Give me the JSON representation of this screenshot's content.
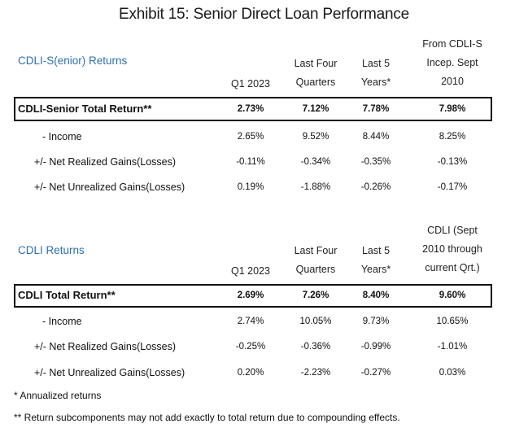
{
  "title": "Exhibit 15: Senior Direct Loan Performance",
  "senior": {
    "label": "CDLI-S(enior) Returns",
    "col1": [
      "Q1 2023"
    ],
    "col2": [
      "Last Four",
      "Quarters"
    ],
    "col3": [
      "Last 5",
      "Years*"
    ],
    "col4": [
      "From CDLI-S",
      "Incep. Sept",
      "2010"
    ],
    "total": {
      "label": "CDLI-Senior Total Return**",
      "values": [
        "2.73%",
        "7.12%",
        "7.78%",
        "7.98%"
      ]
    },
    "rows": [
      {
        "label": "- Income",
        "values": [
          "2.65%",
          "9.52%",
          "8.44%",
          "8.25%"
        ]
      },
      {
        "label": "+/- Net Realized Gains(Losses)",
        "values": [
          "-0.11%",
          "-0.34%",
          "-0.35%",
          "-0.13%"
        ]
      },
      {
        "label": "+/- Net Unrealized Gains(Losses)",
        "values": [
          "0.19%",
          "-1.88%",
          "-0.26%",
          "-0.17%"
        ]
      }
    ]
  },
  "cdli": {
    "label": "CDLI Returns",
    "col1": [
      "Q1 2023"
    ],
    "col2": [
      "Last Four",
      "Quarters"
    ],
    "col3": [
      "Last 5",
      "Years*"
    ],
    "col4": [
      "CDLI (Sept",
      "2010 through",
      "current Qrt.)"
    ],
    "total": {
      "label": "CDLI Total Return**",
      "values": [
        "2.69%",
        "7.26%",
        "8.40%",
        "9.60%"
      ]
    },
    "rows": [
      {
        "label": "- Income",
        "values": [
          "2.74%",
          "10.05%",
          "9.73%",
          "10.65%"
        ]
      },
      {
        "label": "+/- Net Realized Gains(Losses)",
        "values": [
          "-0.25%",
          "-0.36%",
          "-0.99%",
          "-1.01%"
        ]
      },
      {
        "label": "+/- Net Unrealized Gains(Losses)",
        "values": [
          "0.20%",
          "-2.23%",
          "-0.27%",
          "0.03%"
        ]
      }
    ]
  },
  "notes": [
    "* Annualized returns",
    "** Return subcomponents may not add exactly to total return due to compounding effects."
  ],
  "colors": {
    "section_label": "#2f6fb0",
    "text": "#111111"
  }
}
